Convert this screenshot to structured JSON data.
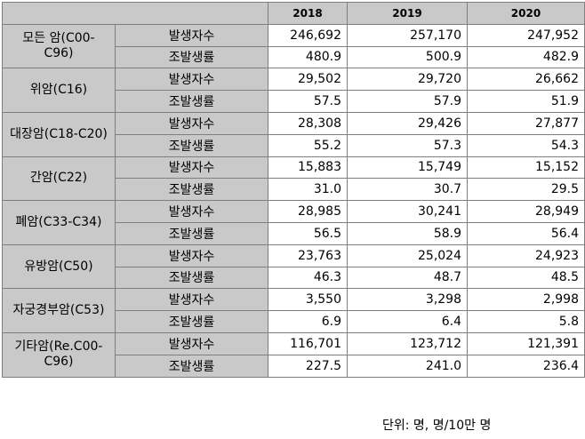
{
  "table": {
    "header": [
      "2018",
      "2019",
      "2020"
    ],
    "groups": [
      {
        "label": "모든 암(C00-C96)",
        "rows": [
          {
            "metric": "발생자수",
            "values": [
              "246,692",
              "257,170",
              "247,952"
            ]
          },
          {
            "metric": "조발생률",
            "values": [
              "480.9",
              "500.9",
              "482.9"
            ]
          }
        ]
      },
      {
        "label": "위암(C16)",
        "rows": [
          {
            "metric": "발생자수",
            "values": [
              "29,502",
              "29,720",
              "26,662"
            ]
          },
          {
            "metric": "조발생률",
            "values": [
              "57.5",
              "57.9",
              "51.9"
            ]
          }
        ]
      },
      {
        "label": "대장암(C18-C20)",
        "rows": [
          {
            "metric": "발생자수",
            "values": [
              "28,308",
              "29,426",
              "27,877"
            ]
          },
          {
            "metric": "조발생률",
            "values": [
              "55.2",
              "57.3",
              "54.3"
            ]
          }
        ]
      },
      {
        "label": "간암(C22)",
        "rows": [
          {
            "metric": "발생자수",
            "values": [
              "15,883",
              "15,749",
              "15,152"
            ]
          },
          {
            "metric": "조발생률",
            "values": [
              "31.0",
              "30.7",
              "29.5"
            ]
          }
        ]
      },
      {
        "label": "폐암(C33-C34)",
        "rows": [
          {
            "metric": "발생자수",
            "values": [
              "28,985",
              "30,241",
              "28,949"
            ]
          },
          {
            "metric": "조발생률",
            "values": [
              "56.5",
              "58.9",
              "56.4"
            ]
          }
        ]
      },
      {
        "label": "유방암(C50)",
        "rows": [
          {
            "metric": "발생자수",
            "values": [
              "23,763",
              "25,024",
              "24,923"
            ]
          },
          {
            "metric": "조발생률",
            "values": [
              "46.3",
              "48.7",
              "48.5"
            ]
          }
        ]
      },
      {
        "label": "자궁경부암(C53)",
        "rows": [
          {
            "metric": "발생자수",
            "values": [
              "3,550",
              "3,298",
              "2,998"
            ]
          },
          {
            "metric": "조발생률",
            "values": [
              "6.9",
              "6.4",
              "5.8"
            ]
          }
        ]
      },
      {
        "label": "기타암(Re.C00-C96)",
        "rows": [
          {
            "metric": "발생자수",
            "values": [
              "116,701",
              "123,712",
              "121,391"
            ]
          },
          {
            "metric": "조발생률",
            "values": [
              "227.5",
              "241.0",
              "236.4"
            ]
          }
        ]
      }
    ],
    "footnote": "단위: 명, 명/10만 명"
  }
}
